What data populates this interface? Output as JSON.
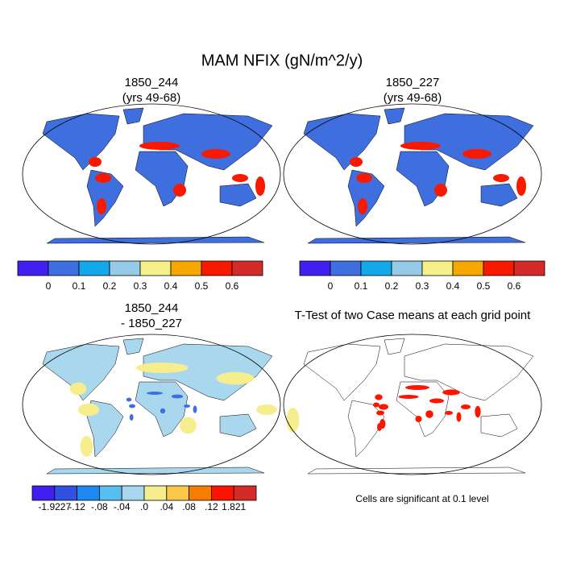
{
  "title": "MAM NFIX (gN/m^2/y)",
  "panels": [
    {
      "title": [
        "1850_244",
        "(yrs 49-68)"
      ],
      "colorbar": {
        "colors": [
          "#4020f0",
          "#3f6fde",
          "#12a8ea",
          "#95cbe6",
          "#f6f08a",
          "#f6a800",
          "#f81a00",
          "#d52b28"
        ],
        "labels": [
          "0",
          "0.1",
          "0.2",
          "0.3",
          "0.4",
          "0.5",
          "0.6"
        ]
      }
    },
    {
      "title": [
        "1850_227",
        "(yrs 49-68)"
      ],
      "colorbar": {
        "colors": [
          "#4020f0",
          "#3f6fde",
          "#12a8ea",
          "#95cbe6",
          "#f6f08a",
          "#f6a800",
          "#f81a00",
          "#d52b28"
        ],
        "labels": [
          "0",
          "0.1",
          "0.2",
          "0.3",
          "0.4",
          "0.5",
          "0.6"
        ]
      }
    },
    {
      "title": [
        "1850_244",
        "- 1850_227"
      ],
      "colorbar": {
        "colors": [
          "#4020f0",
          "#2f52e0",
          "#1f88f0",
          "#56bff0",
          "#a9d8ee",
          "#f6ee8c",
          "#fbc84a",
          "#f57e00",
          "#ff1400",
          "#d52b28"
        ],
        "labels": [
          "-1.9227",
          "-.12",
          "-.08",
          "-.04",
          ".0",
          ".04",
          ".08",
          ".12",
          "1.821"
        ]
      }
    },
    {
      "title": [
        "T-Test of two Case means at each grid point"
      ],
      "note": "Cells are significant at 0.1 level"
    }
  ]
}
